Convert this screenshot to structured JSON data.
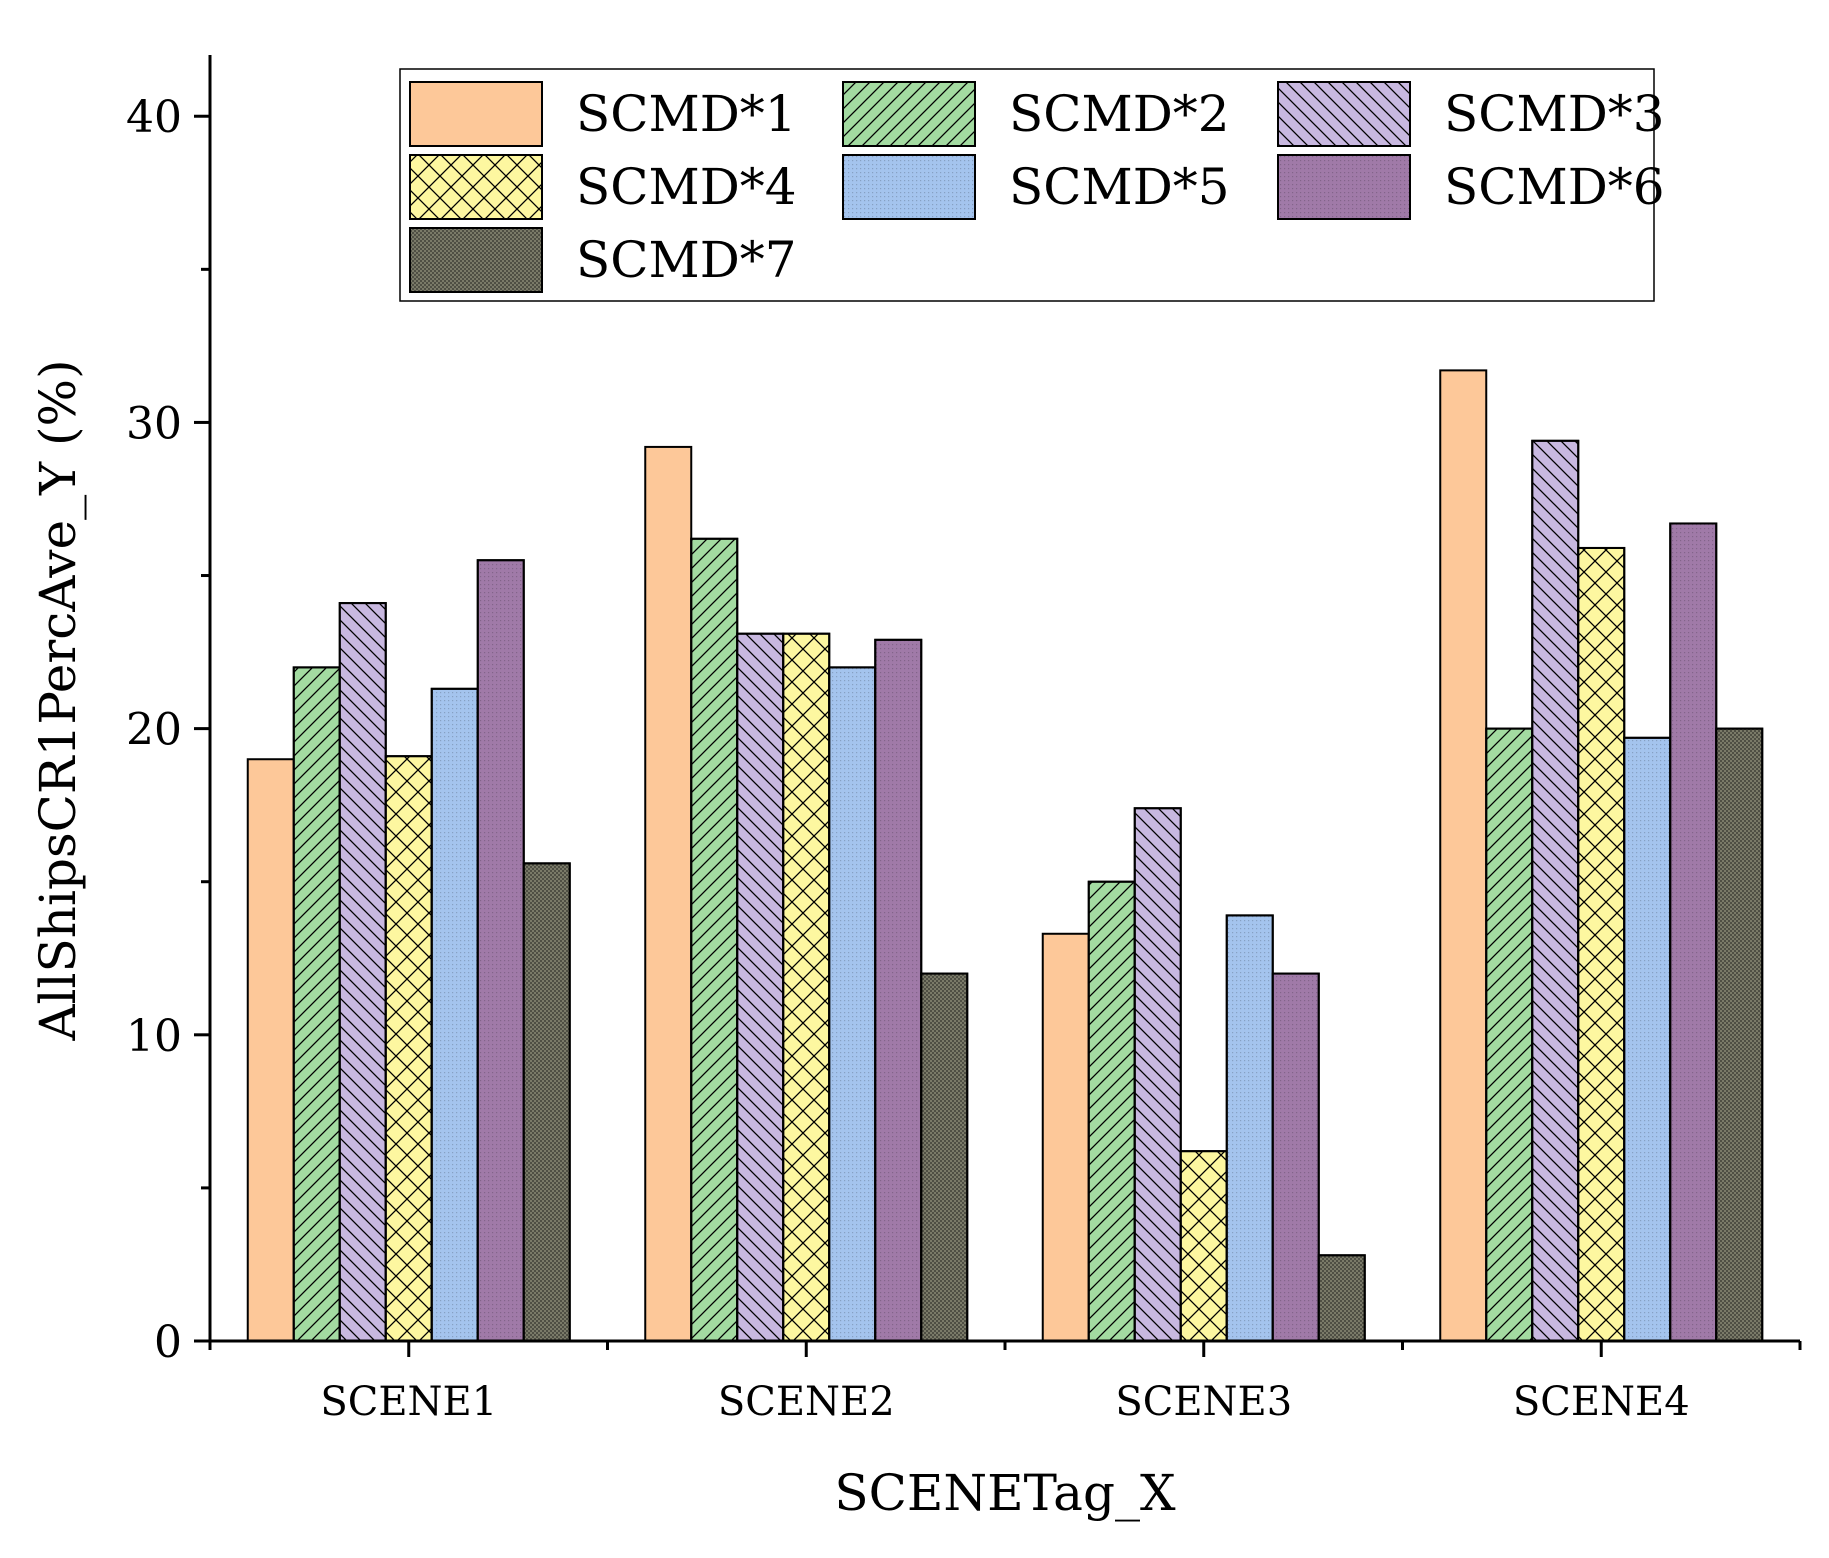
{
  "chart_data": {
    "type": "bar",
    "xlabel": "SCENETag_X",
    "ylabel": "AllShipsCR1PercAve_Y (%)",
    "categories": [
      "SCENE1",
      "SCENE2",
      "SCENE3",
      "SCENE4"
    ],
    "ylim": [
      0,
      42
    ],
    "yticks": [
      0,
      10,
      20,
      30,
      40
    ],
    "grid": false,
    "legend_position": "top",
    "series": [
      {
        "name": "SCMD*1",
        "values": [
          19.0,
          29.2,
          13.3,
          31.7
        ],
        "color": "#fdc899",
        "pattern": "none"
      },
      {
        "name": "SCMD*2",
        "values": [
          22.0,
          26.2,
          15.0,
          20.0
        ],
        "color": "#a3dba1",
        "pattern": "forward-diagonal"
      },
      {
        "name": "SCMD*3",
        "values": [
          24.1,
          23.1,
          17.4,
          29.4
        ],
        "color": "#c8b8e0",
        "pattern": "backward-diagonal"
      },
      {
        "name": "SCMD*4",
        "values": [
          19.1,
          23.1,
          6.2,
          25.9
        ],
        "color": "#fdf7a0",
        "pattern": "crosshatch"
      },
      {
        "name": "SCMD*5",
        "values": [
          21.3,
          22.0,
          13.9,
          19.7
        ],
        "color": "#a4c4ee",
        "pattern": "fine-dots"
      },
      {
        "name": "SCMD*6",
        "values": [
          25.5,
          22.9,
          12.0,
          26.7
        ],
        "color": "#a07aa8",
        "pattern": "fine-dots"
      },
      {
        "name": "SCMD*7",
        "values": [
          15.6,
          12.0,
          2.8,
          20.0
        ],
        "color": "#7a7a68",
        "pattern": "dense-dots"
      }
    ]
  }
}
